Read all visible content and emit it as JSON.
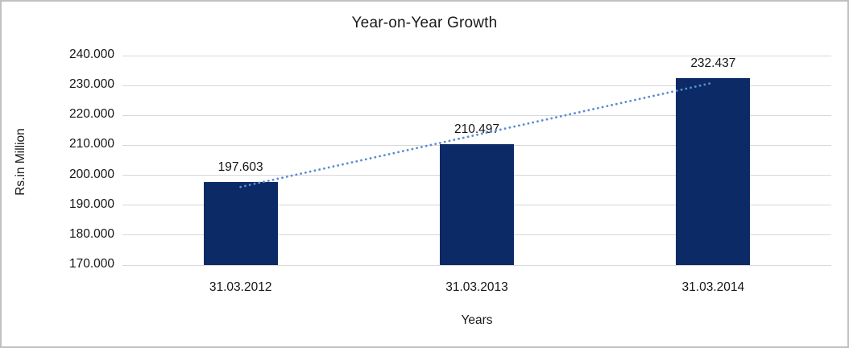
{
  "chart_data": {
    "type": "bar",
    "title": "Year-on-Year Growth",
    "ylabel": "Rs.in Million",
    "xlabel": "Years",
    "categories": [
      "31.03.2012",
      "31.03.2013",
      "31.03.2014"
    ],
    "values": [
      197603,
      210497,
      232437
    ],
    "value_labels": [
      "197.603",
      "210.497",
      "232.437"
    ],
    "y_axis": {
      "min": 170000,
      "max": 240000,
      "step": 10000,
      "tick_labels": [
        "170.000",
        "180.000",
        "190.000",
        "200.000",
        "210.000",
        "220.000",
        "230.000",
        "240.000"
      ]
    },
    "grid": true,
    "legend": "none",
    "trendline": {
      "type": "linear",
      "style": "dotted"
    },
    "colors": {
      "bar": "#0b2a66",
      "trendline": "#5b8cd1",
      "gridline": "#d8d8d8",
      "text": "#151515"
    }
  }
}
